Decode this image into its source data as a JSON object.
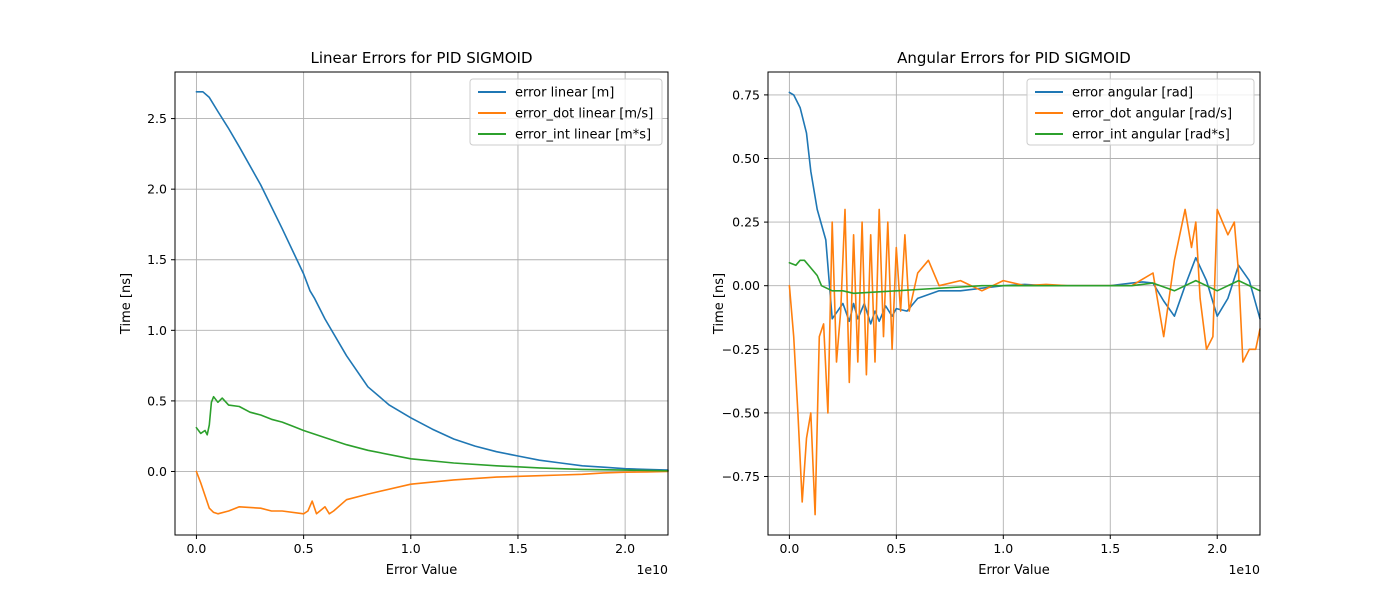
{
  "chart_data": [
    {
      "type": "line",
      "title": "Linear Errors for PID SIGMOID",
      "xlabel": "Error Value",
      "ylabel": "Time [ns]",
      "x_offset_label": "1e10",
      "xlim": [
        -0.1,
        2.2
      ],
      "ylim": [
        -0.45,
        2.83
      ],
      "xticks": [
        0.0,
        0.5,
        1.0,
        1.5,
        2.0
      ],
      "xtick_labels": [
        "0.0",
        "0.5",
        "1.0",
        "1.5",
        "2.0"
      ],
      "yticks": [
        0.0,
        0.5,
        1.0,
        1.5,
        2.0,
        2.5
      ],
      "ytick_labels": [
        "0.0",
        "0.5",
        "1.0",
        "1.5",
        "2.0",
        "2.5"
      ],
      "grid": true,
      "legend_position": "upper right",
      "series": [
        {
          "name": "error linear [m]",
          "color": "#1f77b4",
          "x": [
            0.0,
            0.03,
            0.06,
            0.1,
            0.15,
            0.2,
            0.3,
            0.4,
            0.5,
            0.53,
            0.55,
            0.6,
            0.7,
            0.8,
            0.9,
            1.0,
            1.1,
            1.2,
            1.3,
            1.4,
            1.5,
            1.6,
            1.7,
            1.8,
            1.9,
            2.0,
            2.1,
            2.2
          ],
          "y": [
            2.69,
            2.69,
            2.65,
            2.55,
            2.43,
            2.3,
            2.03,
            1.72,
            1.4,
            1.28,
            1.23,
            1.08,
            0.82,
            0.6,
            0.47,
            0.38,
            0.3,
            0.23,
            0.18,
            0.14,
            0.11,
            0.08,
            0.06,
            0.04,
            0.03,
            0.02,
            0.015,
            0.01
          ]
        },
        {
          "name": "error_dot linear [m/s]",
          "color": "#ff7f0e",
          "x": [
            0.0,
            0.02,
            0.04,
            0.06,
            0.08,
            0.1,
            0.15,
            0.2,
            0.3,
            0.35,
            0.4,
            0.5,
            0.52,
            0.54,
            0.56,
            0.6,
            0.62,
            0.64,
            0.7,
            0.8,
            1.0,
            1.2,
            1.4,
            1.6,
            1.7,
            1.8,
            1.9,
            2.0,
            2.1,
            2.2
          ],
          "y": [
            0.0,
            -0.08,
            -0.17,
            -0.26,
            -0.29,
            -0.3,
            -0.28,
            -0.25,
            -0.26,
            -0.28,
            -0.28,
            -0.3,
            -0.28,
            -0.21,
            -0.3,
            -0.25,
            -0.3,
            -0.28,
            -0.2,
            -0.16,
            -0.09,
            -0.06,
            -0.04,
            -0.03,
            -0.025,
            -0.02,
            -0.01,
            -0.005,
            -0.003,
            0.0
          ]
        },
        {
          "name": "error_int linear [m*s]",
          "color": "#2ca02c",
          "x": [
            0.0,
            0.02,
            0.04,
            0.05,
            0.06,
            0.07,
            0.08,
            0.1,
            0.12,
            0.15,
            0.2,
            0.25,
            0.3,
            0.35,
            0.4,
            0.45,
            0.5,
            0.6,
            0.7,
            0.8,
            1.0,
            1.2,
            1.4,
            1.6,
            1.8,
            2.0,
            2.2
          ],
          "y": [
            0.31,
            0.27,
            0.29,
            0.26,
            0.33,
            0.49,
            0.53,
            0.49,
            0.52,
            0.47,
            0.46,
            0.42,
            0.4,
            0.37,
            0.35,
            0.32,
            0.29,
            0.24,
            0.19,
            0.15,
            0.09,
            0.06,
            0.04,
            0.025,
            0.015,
            0.01,
            0.005
          ]
        }
      ]
    },
    {
      "type": "line",
      "title": "Angular Errors for PID SIGMOID",
      "xlabel": "Error Value",
      "ylabel": "Time [ns]",
      "x_offset_label": "1e10",
      "xlim": [
        -0.1,
        2.2
      ],
      "ylim": [
        -0.98,
        0.84
      ],
      "xticks": [
        0.0,
        0.5,
        1.0,
        1.5,
        2.0
      ],
      "xtick_labels": [
        "0.0",
        "0.5",
        "1.0",
        "1.5",
        "2.0"
      ],
      "yticks": [
        -0.75,
        -0.5,
        -0.25,
        0.0,
        0.25,
        0.5,
        0.75
      ],
      "ytick_labels": [
        "−0.75",
        "−0.50",
        "−0.25",
        "0.00",
        "0.25",
        "0.50",
        "0.75"
      ],
      "grid": true,
      "legend_position": "upper right",
      "series": [
        {
          "name": "error angular [rad]",
          "color": "#1f77b4",
          "x": [
            0.0,
            0.02,
            0.05,
            0.08,
            0.1,
            0.13,
            0.17,
            0.2,
            0.25,
            0.28,
            0.3,
            0.32,
            0.35,
            0.38,
            0.4,
            0.42,
            0.45,
            0.48,
            0.5,
            0.55,
            0.6,
            0.7,
            0.8,
            0.9,
            1.0,
            1.1,
            1.2,
            1.3,
            1.4,
            1.5,
            1.6,
            1.65,
            1.7,
            1.75,
            1.8,
            1.85,
            1.9,
            1.95,
            2.0,
            2.05,
            2.1,
            2.15,
            2.2
          ],
          "y": [
            0.76,
            0.75,
            0.7,
            0.6,
            0.45,
            0.3,
            0.18,
            -0.13,
            -0.07,
            -0.14,
            -0.07,
            -0.13,
            -0.07,
            -0.15,
            -0.1,
            -0.14,
            -0.08,
            -0.12,
            -0.09,
            -0.1,
            -0.05,
            -0.02,
            -0.02,
            -0.01,
            0.0,
            0.005,
            0.0,
            0.0,
            0.0,
            0.0,
            0.01,
            0.015,
            0.01,
            -0.06,
            -0.12,
            0.0,
            0.11,
            0.02,
            -0.12,
            -0.05,
            0.08,
            0.02,
            -0.13
          ]
        },
        {
          "name": "error_dot angular [rad/s]",
          "color": "#ff7f0e",
          "x": [
            0.0,
            0.02,
            0.04,
            0.06,
            0.08,
            0.1,
            0.12,
            0.14,
            0.16,
            0.18,
            0.2,
            0.22,
            0.24,
            0.26,
            0.28,
            0.3,
            0.32,
            0.34,
            0.36,
            0.38,
            0.4,
            0.42,
            0.44,
            0.46,
            0.48,
            0.5,
            0.52,
            0.54,
            0.56,
            0.6,
            0.65,
            0.7,
            0.8,
            0.9,
            1.0,
            1.1,
            1.2,
            1.3,
            1.4,
            1.5,
            1.6,
            1.7,
            1.75,
            1.8,
            1.85,
            1.88,
            1.9,
            1.92,
            1.95,
            1.98,
            2.0,
            2.05,
            2.08,
            2.1,
            2.12,
            2.15,
            2.18,
            2.2
          ],
          "y": [
            0.0,
            -0.2,
            -0.5,
            -0.85,
            -0.6,
            -0.5,
            -0.9,
            -0.2,
            -0.15,
            -0.5,
            0.25,
            -0.3,
            -0.1,
            0.3,
            -0.38,
            0.2,
            -0.3,
            0.25,
            -0.35,
            0.2,
            -0.3,
            0.3,
            -0.2,
            0.25,
            -0.25,
            0.15,
            -0.1,
            0.2,
            -0.1,
            0.05,
            0.1,
            0.0,
            0.02,
            -0.02,
            0.02,
            0.0,
            0.005,
            0.0,
            0.0,
            0.0,
            0.0,
            0.05,
            -0.2,
            0.1,
            0.3,
            0.15,
            0.25,
            -0.05,
            -0.25,
            -0.2,
            0.3,
            0.2,
            0.25,
            0.05,
            -0.3,
            -0.25,
            -0.25,
            -0.17
          ]
        },
        {
          "name": "error_int angular [rad*s]",
          "color": "#2ca02c",
          "x": [
            0.0,
            0.03,
            0.05,
            0.07,
            0.1,
            0.13,
            0.15,
            0.2,
            0.25,
            0.3,
            0.4,
            0.5,
            0.6,
            0.7,
            0.8,
            0.9,
            1.0,
            1.2,
            1.4,
            1.6,
            1.7,
            1.8,
            1.9,
            2.0,
            2.1,
            2.2
          ],
          "y": [
            0.09,
            0.08,
            0.1,
            0.1,
            0.07,
            0.04,
            0.0,
            -0.02,
            -0.02,
            -0.03,
            -0.025,
            -0.02,
            -0.015,
            -0.01,
            -0.005,
            0.0,
            0.0,
            0.0,
            0.0,
            0.0,
            0.01,
            -0.02,
            0.02,
            -0.02,
            0.02,
            -0.02
          ]
        }
      ]
    }
  ]
}
